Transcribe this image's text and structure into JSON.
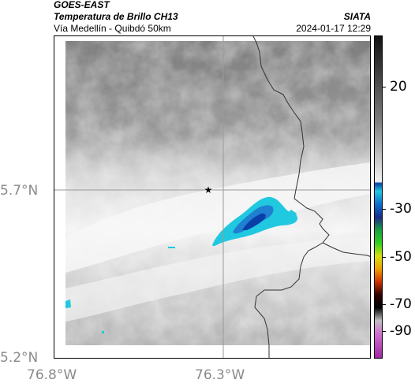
{
  "header": {
    "satellite": "GOES-EAST",
    "product": "Temperatura de Brillo CH13",
    "region": "Vía Medellín - Quibdó 50km",
    "source": "SIATA",
    "datetime": "2024-01-17 12:29"
  },
  "axes": {
    "y_labels": [
      "5.7°N",
      "5.2°N"
    ],
    "x_labels": [
      "76.8°W",
      "76.3°W"
    ]
  },
  "colorbar": {
    "labels": [
      "20",
      "-30",
      "-50",
      "-70",
      "-90"
    ],
    "values": [
      20,
      -30,
      -50,
      -70,
      -90
    ],
    "range": [
      30,
      -95
    ]
  },
  "colors": {
    "ice_cyan": "#20c8e0",
    "deep_blue": "#0a3fa8",
    "border_line": "#333333"
  }
}
